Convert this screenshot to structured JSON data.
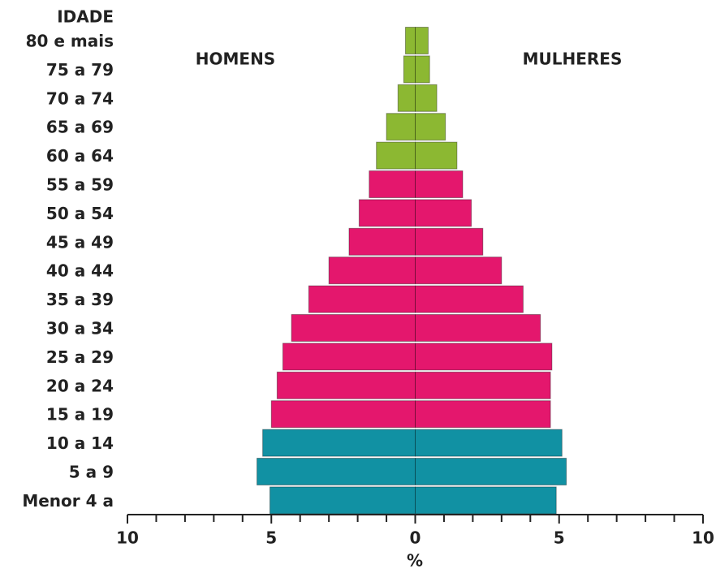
{
  "chart_data": {
    "type": "pyramid",
    "y_axis_label": "IDADE",
    "x_axis_label": "%",
    "categories": [
      "80 e mais",
      "75 a 79",
      "70 a 74",
      "65 a 69",
      "60 a 64",
      "55 a 59",
      "50 a 54",
      "45 a 49",
      "40 a 44",
      "35 a 39",
      "30 a 34",
      "25 a 29",
      "20 a 24",
      "15 a 19",
      "10 a 14",
      "5 a 9",
      "Menor 4 a"
    ],
    "colors": [
      "#8cb832",
      "#8cb832",
      "#8cb832",
      "#8cb832",
      "#8cb832",
      "#e4176d",
      "#e4176d",
      "#e4176d",
      "#e4176d",
      "#e4176d",
      "#e4176d",
      "#e4176d",
      "#e4176d",
      "#e4176d",
      "#1191a3",
      "#1191a3",
      "#1191a3"
    ],
    "series": [
      {
        "name": "HOMENS",
        "side": "left",
        "values": [
          0.34,
          0.4,
          0.6,
          1.0,
          1.35,
          1.6,
          1.95,
          2.3,
          3.0,
          3.7,
          4.3,
          4.6,
          4.8,
          5.0,
          5.3,
          5.5,
          5.05
        ]
      },
      {
        "name": "MULHERES",
        "side": "right",
        "values": [
          0.45,
          0.5,
          0.75,
          1.05,
          1.45,
          1.65,
          1.95,
          2.35,
          3.0,
          3.75,
          4.35,
          4.75,
          4.7,
          4.7,
          5.1,
          5.25,
          4.9
        ]
      }
    ],
    "xlim": [
      -10,
      10
    ],
    "xticks": [
      {
        "value": -10,
        "label": "10"
      },
      {
        "value": -5,
        "label": "5"
      },
      0,
      5,
      10
    ],
    "minor_xticks": [
      -9,
      -8,
      -7,
      -6,
      -4,
      -3,
      -2,
      -1,
      1,
      2,
      3,
      4,
      6,
      7,
      8,
      9
    ]
  }
}
